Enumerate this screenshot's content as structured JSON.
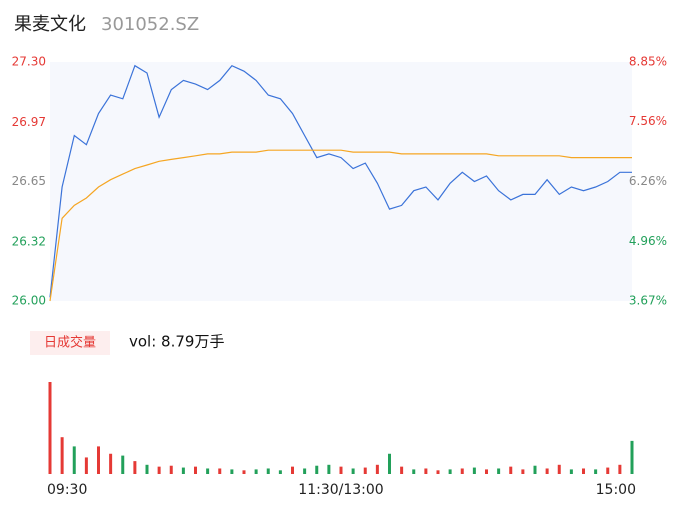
{
  "chart_data": [
    {
      "type": "line",
      "title": "果麦文化",
      "subtitle": "301052.SZ",
      "x": [
        0,
        5,
        10,
        15,
        20,
        25,
        30,
        35,
        40,
        45,
        50,
        55,
        60,
        65,
        70,
        75,
        80,
        85,
        90,
        95,
        100,
        105,
        110,
        115,
        120,
        125,
        130,
        135,
        140,
        145,
        150,
        155,
        160,
        165,
        170,
        175,
        180,
        185,
        190,
        195,
        200,
        205,
        210,
        215,
        220,
        225,
        230,
        235,
        240
      ],
      "xlim": [
        0,
        240
      ],
      "xticks": [
        {
          "value": 0,
          "label": "09:30"
        },
        {
          "value": 120,
          "label": "11:30/13:00"
        },
        {
          "value": 240,
          "label": "15:00"
        }
      ],
      "series": [
        {
          "color": "#3b73d9",
          "values": [
            26.02,
            26.62,
            26.9,
            26.85,
            27.02,
            27.12,
            27.1,
            27.28,
            27.24,
            27.0,
            27.15,
            27.2,
            27.18,
            27.15,
            27.2,
            27.28,
            27.25,
            27.2,
            27.12,
            27.1,
            27.02,
            26.9,
            26.78,
            26.8,
            26.78,
            26.72,
            26.75,
            26.64,
            26.5,
            26.52,
            26.6,
            26.62,
            26.55,
            26.64,
            26.7,
            26.65,
            26.68,
            26.6,
            26.55,
            26.58,
            26.58,
            26.66,
            26.58,
            26.62,
            26.6,
            26.62,
            26.65,
            26.7,
            26.7
          ]
        },
        {
          "color": "#f5a623",
          "values": [
            26.0,
            26.45,
            26.52,
            26.56,
            26.62,
            26.66,
            26.69,
            26.72,
            26.74,
            26.76,
            26.77,
            26.78,
            26.79,
            26.8,
            26.8,
            26.81,
            26.81,
            26.81,
            26.82,
            26.82,
            26.82,
            26.82,
            26.82,
            26.82,
            26.82,
            26.81,
            26.81,
            26.81,
            26.81,
            26.8,
            26.8,
            26.8,
            26.8,
            26.8,
            26.8,
            26.8,
            26.8,
            26.79,
            26.79,
            26.79,
            26.79,
            26.79,
            26.79,
            26.78,
            26.78,
            26.78,
            26.78,
            26.78,
            26.78
          ]
        }
      ],
      "ylim": [
        26.0,
        27.3
      ],
      "yticks": [
        {
          "value": 26,
          "label": "26.00"
        },
        26.32,
        26.65,
        26.97,
        {
          "value": 27.3,
          "label": "27.30"
        }
      ],
      "y2lim": [
        3.67,
        8.85
      ],
      "y2ticks": [
        {
          "value": 3.67,
          "label": "3.67%"
        },
        {
          "value": 4.96,
          "label": "4.96%"
        },
        {
          "value": 6.26,
          "label": "6.26%"
        },
        {
          "value": 7.56,
          "label": "7.56%"
        },
        {
          "value": 8.85,
          "label": "8.85%"
        }
      ],
      "tick_colors": [
        "#22a05a",
        "#22a05a",
        "#888888",
        "#e53935",
        "#e53935"
      ]
    },
    {
      "type": "bar",
      "title": "日成交量",
      "annotation": "vol: 8.79万手",
      "x": [
        0,
        5,
        10,
        15,
        20,
        25,
        30,
        35,
        40,
        45,
        50,
        55,
        60,
        65,
        70,
        75,
        80,
        85,
        90,
        95,
        100,
        105,
        110,
        115,
        120,
        125,
        130,
        135,
        140,
        145,
        150,
        155,
        160,
        165,
        170,
        175,
        180,
        185,
        190,
        195,
        200,
        205,
        210,
        215,
        220,
        225,
        230,
        235,
        240
      ],
      "xlim": [
        0,
        240
      ],
      "values": [
        100,
        40,
        30,
        18,
        30,
        22,
        20,
        14,
        10,
        8,
        9,
        7,
        8,
        6,
        6,
        5,
        4,
        5,
        6,
        4,
        8,
        6,
        9,
        10,
        8,
        6,
        7,
        10,
        22,
        8,
        5,
        6,
        4,
        5,
        6,
        7,
        5,
        6,
        8,
        5,
        9,
        6,
        10,
        5,
        6,
        5,
        7,
        10,
        36
      ],
      "ylim": [
        0,
        100
      ],
      "colors": [
        "#e53935",
        "#e53935",
        "#22a05a",
        "#e53935",
        "#e53935",
        "#e53935",
        "#22a05a",
        "#e53935",
        "#22a05a",
        "#e53935",
        "#e53935",
        "#22a05a",
        "#e53935",
        "#22a05a",
        "#e53935",
        "#22a05a",
        "#e53935",
        "#22a05a",
        "#22a05a",
        "#22a05a",
        "#e53935",
        "#22a05a",
        "#22a05a",
        "#22a05a",
        "#e53935",
        "#22a05a",
        "#e53935",
        "#e53935",
        "#22a05a",
        "#e53935",
        "#22a05a",
        "#e53935",
        "#e53935",
        "#22a05a",
        "#e53935",
        "#22a05a",
        "#e53935",
        "#22a05a",
        "#e53935",
        "#e53935",
        "#22a05a",
        "#e53935",
        "#e53935",
        "#22a05a",
        "#e53935",
        "#22a05a",
        "#e53935",
        "#e53935",
        "#22a05a"
      ]
    }
  ]
}
